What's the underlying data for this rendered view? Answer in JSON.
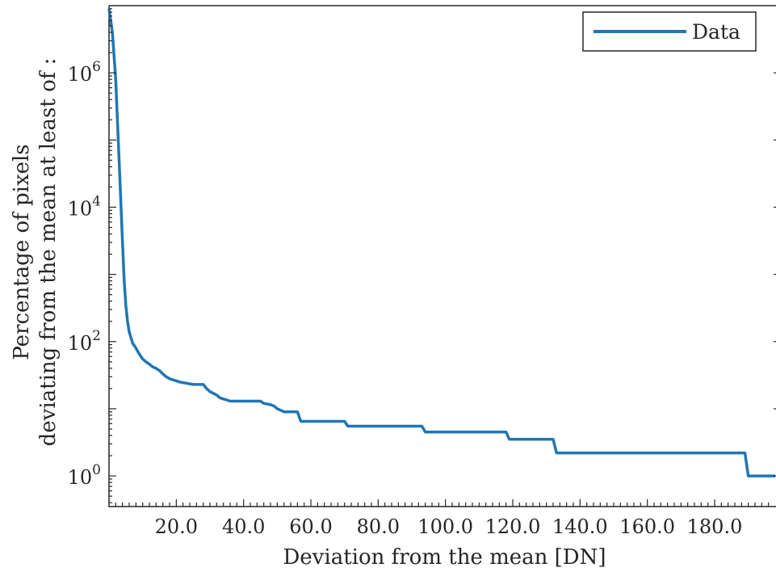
{
  "chart_data": {
    "type": "line",
    "title": "",
    "xlabel": "Deviation from the mean [DN]",
    "ylabel_lines": [
      "Percentage of pixels",
      "deviating from the mean at least of :"
    ],
    "y_scale": "log",
    "xlim": [
      0,
      198
    ],
    "ylim": [
      0.35,
      10000000
    ],
    "x_ticks": [
      20,
      40,
      60,
      80,
      100,
      120,
      140,
      160,
      180
    ],
    "x_tick_labels": [
      "20.0",
      "40.0",
      "60.0",
      "80.0",
      "100.0",
      "120.0",
      "140.0",
      "160.0",
      "180.0"
    ],
    "y_ticks": [
      1,
      100,
      10000,
      1000000
    ],
    "y_tick_labels": [
      {
        "base": "10",
        "exp": "0"
      },
      {
        "base": "10",
        "exp": "2"
      },
      {
        "base": "10",
        "exp": "4"
      },
      {
        "base": "10",
        "exp": "6"
      }
    ],
    "grid": false,
    "legend_position": "top-right",
    "series": [
      {
        "name": "Data",
        "color": "#1f77b4",
        "x": [
          0,
          1,
          2,
          3,
          4,
          4.5,
          5,
          5.5,
          6,
          7,
          8,
          9,
          10,
          11,
          12,
          13,
          14,
          15,
          16,
          17,
          18,
          19,
          20,
          21,
          22,
          23,
          24,
          25,
          26,
          27,
          28,
          29,
          30,
          31,
          32,
          33,
          34,
          35,
          36,
          45,
          46,
          48,
          49,
          50,
          51,
          52,
          56,
          57,
          70,
          71,
          93,
          94,
          118,
          119,
          132,
          133,
          189,
          190,
          198
        ],
        "y": [
          9000000,
          4000000,
          800000,
          50000,
          3000,
          800,
          350,
          200,
          140,
          95,
          80,
          65,
          55,
          50,
          46,
          42,
          40,
          37,
          33,
          30,
          28,
          27,
          26,
          25,
          24.5,
          24,
          23.5,
          23,
          23,
          23,
          23,
          20,
          18,
          17,
          16,
          14.5,
          14,
          13.5,
          13,
          13,
          12,
          11.5,
          11,
          10,
          9.5,
          9,
          9,
          6.5,
          6.5,
          5.5,
          5.5,
          4.5,
          4.5,
          3.5,
          3.5,
          2.2,
          2.2,
          1.0,
          1.0
        ]
      }
    ]
  }
}
